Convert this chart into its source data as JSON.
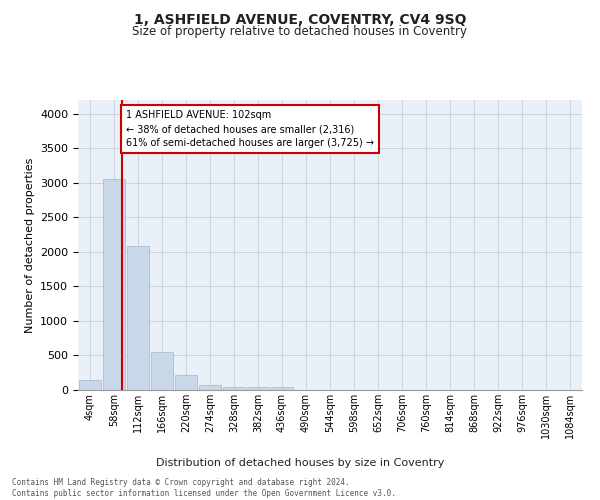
{
  "title": "1, ASHFIELD AVENUE, COVENTRY, CV4 9SQ",
  "subtitle": "Size of property relative to detached houses in Coventry",
  "xlabel": "Distribution of detached houses by size in Coventry",
  "ylabel": "Number of detached properties",
  "bar_labels": [
    "4sqm",
    "58sqm",
    "112sqm",
    "166sqm",
    "220sqm",
    "274sqm",
    "328sqm",
    "382sqm",
    "436sqm",
    "490sqm",
    "544sqm",
    "598sqm",
    "652sqm",
    "706sqm",
    "760sqm",
    "814sqm",
    "868sqm",
    "922sqm",
    "976sqm",
    "1030sqm",
    "1084sqm"
  ],
  "bar_values": [
    150,
    3050,
    2080,
    555,
    215,
    75,
    50,
    45,
    45,
    0,
    0,
    0,
    0,
    0,
    0,
    0,
    0,
    0,
    0,
    0,
    0
  ],
  "bar_color": "#c8d8e8",
  "bar_edge_color": "#a0b8cc",
  "property_line_x": 1.35,
  "annotation_text": "1 ASHFIELD AVENUE: 102sqm\n← 38% of detached houses are smaller (2,316)\n61% of semi-detached houses are larger (3,725) →",
  "annotation_box_color": "#ffffff",
  "annotation_box_edge_color": "#cc0000",
  "vline_color": "#cc0000",
  "grid_color": "#c8d4e0",
  "ylim": [
    0,
    4200
  ],
  "yticks": [
    0,
    500,
    1000,
    1500,
    2000,
    2500,
    3000,
    3500,
    4000
  ],
  "bg_color": "#eaf0f8",
  "footer_line1": "Contains HM Land Registry data © Crown copyright and database right 2024.",
  "footer_line2": "Contains public sector information licensed under the Open Government Licence v3.0."
}
